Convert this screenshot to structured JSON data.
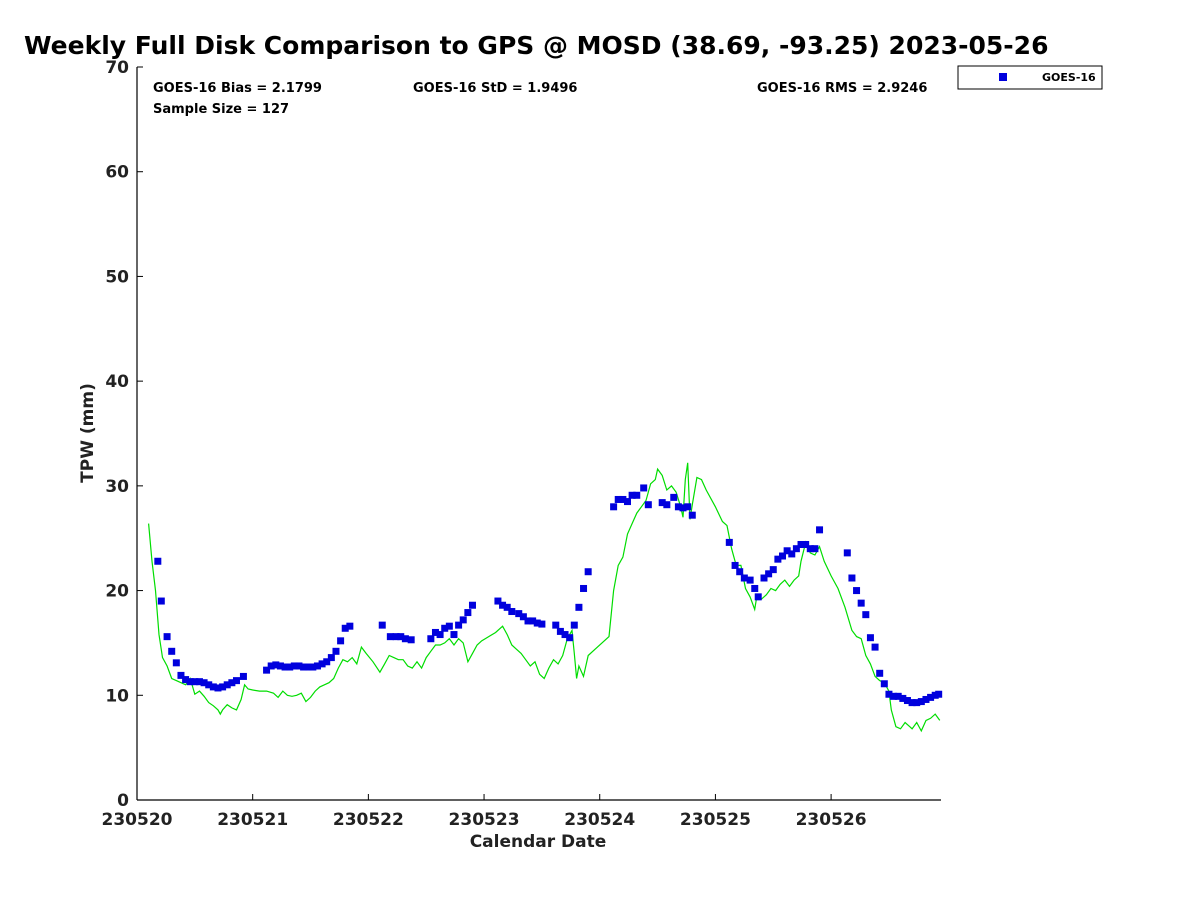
{
  "chart_data": {
    "type": "scatter",
    "title": "Weekly Full Disk Comparison to GPS @ MOSD (38.69, -93.25) 2023-05-26",
    "xlabel": "Calendar Date",
    "ylabel": "TPW (mm)",
    "xlim": [
      0,
      6.95
    ],
    "ylim": [
      0,
      70
    ],
    "x_tick_values": [
      0,
      1,
      2,
      3,
      4,
      5,
      6
    ],
    "x_tick_labels": [
      "230520",
      "230521",
      "230522",
      "230523",
      "230524",
      "230525",
      "230526"
    ],
    "y_ticks": [
      0,
      10,
      20,
      30,
      40,
      50,
      60,
      70
    ],
    "legend": {
      "position": "top-right, outside plot",
      "entries": [
        {
          "label": "GOES-16",
          "marker": "square",
          "color": "#0000dd"
        }
      ]
    },
    "stats": {
      "bias": "GOES-16 Bias = 2.1799",
      "std": "GOES-16 StD = 1.9496",
      "rms": "GOES-16 RMS = 2.9246",
      "sample": "Sample Size = 127"
    },
    "series": [
      {
        "name": "GOES-16",
        "kind": "points",
        "color": "#0000dd",
        "points": [
          [
            0.18,
            22.8
          ],
          [
            0.21,
            19.0
          ],
          [
            0.26,
            15.6
          ],
          [
            0.3,
            14.2
          ],
          [
            0.34,
            13.1
          ],
          [
            0.38,
            11.9
          ],
          [
            0.42,
            11.5
          ],
          [
            0.46,
            11.3
          ],
          [
            0.5,
            11.3
          ],
          [
            0.54,
            11.3
          ],
          [
            0.58,
            11.2
          ],
          [
            0.62,
            11.0
          ],
          [
            0.66,
            10.8
          ],
          [
            0.7,
            10.7
          ],
          [
            0.74,
            10.8
          ],
          [
            0.78,
            11.0
          ],
          [
            0.82,
            11.2
          ],
          [
            0.86,
            11.4
          ],
          [
            0.92,
            11.8
          ],
          [
            1.12,
            12.4
          ],
          [
            1.16,
            12.8
          ],
          [
            1.2,
            12.9
          ],
          [
            1.24,
            12.8
          ],
          [
            1.28,
            12.7
          ],
          [
            1.32,
            12.7
          ],
          [
            1.36,
            12.8
          ],
          [
            1.4,
            12.8
          ],
          [
            1.44,
            12.7
          ],
          [
            1.48,
            12.7
          ],
          [
            1.52,
            12.7
          ],
          [
            1.56,
            12.8
          ],
          [
            1.6,
            13.0
          ],
          [
            1.64,
            13.2
          ],
          [
            1.68,
            13.6
          ],
          [
            1.72,
            14.2
          ],
          [
            1.76,
            15.2
          ],
          [
            1.8,
            16.4
          ],
          [
            1.84,
            16.6
          ],
          [
            2.12,
            16.7
          ],
          [
            2.19,
            15.6
          ],
          [
            2.24,
            15.6
          ],
          [
            2.28,
            15.6
          ],
          [
            2.32,
            15.4
          ],
          [
            2.37,
            15.3
          ],
          [
            2.54,
            15.4
          ],
          [
            2.58,
            16.0
          ],
          [
            2.62,
            15.8
          ],
          [
            2.66,
            16.4
          ],
          [
            2.7,
            16.6
          ],
          [
            2.74,
            15.8
          ],
          [
            2.78,
            16.7
          ],
          [
            2.82,
            17.2
          ],
          [
            2.86,
            17.9
          ],
          [
            2.9,
            18.6
          ],
          [
            3.12,
            19.0
          ],
          [
            3.16,
            18.6
          ],
          [
            3.2,
            18.4
          ],
          [
            3.24,
            18.0
          ],
          [
            3.3,
            17.8
          ],
          [
            3.34,
            17.5
          ],
          [
            3.38,
            17.1
          ],
          [
            3.42,
            17.1
          ],
          [
            3.46,
            16.9
          ],
          [
            3.5,
            16.8
          ],
          [
            3.62,
            16.7
          ],
          [
            3.66,
            16.1
          ],
          [
            3.7,
            15.8
          ],
          [
            3.74,
            15.5
          ],
          [
            3.78,
            16.7
          ],
          [
            3.82,
            18.4
          ],
          [
            3.86,
            20.2
          ],
          [
            3.9,
            21.8
          ],
          [
            4.12,
            28.0
          ],
          [
            4.16,
            28.7
          ],
          [
            4.2,
            28.7
          ],
          [
            4.24,
            28.5
          ],
          [
            4.28,
            29.1
          ],
          [
            4.32,
            29.1
          ],
          [
            4.38,
            29.8
          ],
          [
            4.42,
            28.2
          ],
          [
            4.54,
            28.4
          ],
          [
            4.58,
            28.2
          ],
          [
            4.64,
            28.9
          ],
          [
            4.68,
            28.0
          ],
          [
            4.72,
            27.9
          ],
          [
            4.76,
            28.0
          ],
          [
            4.8,
            27.2
          ],
          [
            5.12,
            24.6
          ],
          [
            5.17,
            22.4
          ],
          [
            5.21,
            21.8
          ],
          [
            5.25,
            21.2
          ],
          [
            5.3,
            21.0
          ],
          [
            5.34,
            20.2
          ],
          [
            5.37,
            19.4
          ],
          [
            5.42,
            21.2
          ],
          [
            5.46,
            21.6
          ],
          [
            5.5,
            22.0
          ],
          [
            5.54,
            23.0
          ],
          [
            5.58,
            23.3
          ],
          [
            5.62,
            23.8
          ],
          [
            5.66,
            23.5
          ],
          [
            5.7,
            24.0
          ],
          [
            5.74,
            24.4
          ],
          [
            5.78,
            24.4
          ],
          [
            5.82,
            24.0
          ],
          [
            5.86,
            24.0
          ],
          [
            5.9,
            25.8
          ],
          [
            6.14,
            23.6
          ],
          [
            6.18,
            21.2
          ],
          [
            6.22,
            20.0
          ],
          [
            6.26,
            18.8
          ],
          [
            6.3,
            17.7
          ],
          [
            6.34,
            15.5
          ],
          [
            6.38,
            14.6
          ],
          [
            6.42,
            12.1
          ],
          [
            6.46,
            11.1
          ],
          [
            6.5,
            10.1
          ],
          [
            6.54,
            9.9
          ],
          [
            6.58,
            9.9
          ],
          [
            6.62,
            9.7
          ],
          [
            6.66,
            9.5
          ],
          [
            6.7,
            9.3
          ],
          [
            6.74,
            9.3
          ],
          [
            6.78,
            9.4
          ],
          [
            6.82,
            9.6
          ],
          [
            6.86,
            9.8
          ],
          [
            6.9,
            10.0
          ],
          [
            6.93,
            10.1
          ]
        ]
      },
      {
        "name": "GPS",
        "kind": "line",
        "color": "#00dd00",
        "points": [
          [
            0.1,
            26.4
          ],
          [
            0.13,
            22.8
          ],
          [
            0.16,
            20.0
          ],
          [
            0.19,
            15.8
          ],
          [
            0.22,
            13.6
          ],
          [
            0.26,
            12.8
          ],
          [
            0.3,
            11.6
          ],
          [
            0.34,
            11.4
          ],
          [
            0.38,
            11.2
          ],
          [
            0.42,
            11.0
          ],
          [
            0.46,
            11.6
          ],
          [
            0.5,
            10.1
          ],
          [
            0.54,
            10.4
          ],
          [
            0.58,
            9.9
          ],
          [
            0.62,
            9.3
          ],
          [
            0.66,
            9.0
          ],
          [
            0.7,
            8.6
          ],
          [
            0.72,
            8.2
          ],
          [
            0.74,
            8.6
          ],
          [
            0.78,
            9.1
          ],
          [
            0.82,
            8.8
          ],
          [
            0.86,
            8.6
          ],
          [
            0.9,
            9.6
          ],
          [
            0.93,
            11.0
          ],
          [
            0.96,
            10.6
          ],
          [
            1.0,
            10.5
          ],
          [
            1.06,
            10.4
          ],
          [
            1.12,
            10.4
          ],
          [
            1.18,
            10.2
          ],
          [
            1.22,
            9.8
          ],
          [
            1.26,
            10.4
          ],
          [
            1.3,
            10.0
          ],
          [
            1.34,
            9.9
          ],
          [
            1.38,
            10.0
          ],
          [
            1.42,
            10.2
          ],
          [
            1.46,
            9.4
          ],
          [
            1.5,
            9.8
          ],
          [
            1.54,
            10.4
          ],
          [
            1.58,
            10.8
          ],
          [
            1.62,
            11.0
          ],
          [
            1.66,
            11.2
          ],
          [
            1.7,
            11.6
          ],
          [
            1.74,
            12.6
          ],
          [
            1.78,
            13.4
          ],
          [
            1.82,
            13.2
          ],
          [
            1.86,
            13.6
          ],
          [
            1.9,
            13.0
          ],
          [
            1.94,
            14.6
          ],
          [
            1.98,
            14.0
          ],
          [
            2.04,
            13.2
          ],
          [
            2.1,
            12.2
          ],
          [
            2.14,
            13.0
          ],
          [
            2.18,
            13.8
          ],
          [
            2.22,
            13.6
          ],
          [
            2.26,
            13.4
          ],
          [
            2.3,
            13.4
          ],
          [
            2.34,
            12.8
          ],
          [
            2.38,
            12.6
          ],
          [
            2.42,
            13.2
          ],
          [
            2.46,
            12.6
          ],
          [
            2.5,
            13.6
          ],
          [
            2.54,
            14.2
          ],
          [
            2.58,
            14.8
          ],
          [
            2.62,
            14.8
          ],
          [
            2.66,
            15.0
          ],
          [
            2.7,
            15.4
          ],
          [
            2.74,
            14.8
          ],
          [
            2.78,
            15.4
          ],
          [
            2.82,
            15.0
          ],
          [
            2.86,
            13.2
          ],
          [
            2.9,
            14.0
          ],
          [
            2.94,
            14.8
          ],
          [
            2.98,
            15.2
          ],
          [
            3.04,
            15.6
          ],
          [
            3.1,
            16.0
          ],
          [
            3.16,
            16.6
          ],
          [
            3.2,
            15.8
          ],
          [
            3.24,
            14.8
          ],
          [
            3.28,
            14.4
          ],
          [
            3.32,
            14.0
          ],
          [
            3.36,
            13.4
          ],
          [
            3.4,
            12.8
          ],
          [
            3.44,
            13.2
          ],
          [
            3.48,
            12.0
          ],
          [
            3.52,
            11.6
          ],
          [
            3.56,
            12.6
          ],
          [
            3.6,
            13.4
          ],
          [
            3.64,
            13.0
          ],
          [
            3.68,
            13.8
          ],
          [
            3.72,
            15.4
          ],
          [
            3.76,
            16.2
          ],
          [
            3.78,
            14.0
          ],
          [
            3.8,
            11.6
          ],
          [
            3.82,
            12.8
          ],
          [
            3.86,
            11.8
          ],
          [
            3.9,
            13.8
          ],
          [
            3.96,
            14.4
          ],
          [
            4.02,
            15.0
          ],
          [
            4.08,
            15.6
          ],
          [
            4.12,
            20.0
          ],
          [
            4.16,
            22.4
          ],
          [
            4.2,
            23.2
          ],
          [
            4.24,
            25.4
          ],
          [
            4.28,
            26.4
          ],
          [
            4.32,
            27.4
          ],
          [
            4.36,
            28.0
          ],
          [
            4.4,
            28.6
          ],
          [
            4.44,
            30.2
          ],
          [
            4.48,
            30.6
          ],
          [
            4.5,
            31.6
          ],
          [
            4.54,
            31.0
          ],
          [
            4.58,
            29.6
          ],
          [
            4.62,
            30.0
          ],
          [
            4.66,
            29.4
          ],
          [
            4.7,
            28.0
          ],
          [
            4.72,
            27.0
          ],
          [
            4.74,
            30.6
          ],
          [
            4.76,
            32.2
          ],
          [
            4.78,
            26.8
          ],
          [
            4.8,
            28.2
          ],
          [
            4.84,
            30.8
          ],
          [
            4.88,
            30.6
          ],
          [
            4.92,
            29.6
          ],
          [
            5.0,
            28.0
          ],
          [
            5.06,
            26.6
          ],
          [
            5.1,
            26.2
          ],
          [
            5.14,
            24.0
          ],
          [
            5.18,
            22.4
          ],
          [
            5.22,
            22.4
          ],
          [
            5.26,
            20.2
          ],
          [
            5.3,
            19.4
          ],
          [
            5.34,
            18.2
          ],
          [
            5.36,
            19.6
          ],
          [
            5.4,
            19.2
          ],
          [
            5.44,
            19.6
          ],
          [
            5.48,
            20.2
          ],
          [
            5.52,
            20.0
          ],
          [
            5.56,
            20.6
          ],
          [
            5.6,
            21.0
          ],
          [
            5.64,
            20.4
          ],
          [
            5.68,
            21.0
          ],
          [
            5.72,
            21.4
          ],
          [
            5.74,
            22.8
          ],
          [
            5.78,
            24.6
          ],
          [
            5.82,
            23.6
          ],
          [
            5.86,
            23.4
          ],
          [
            5.9,
            24.2
          ],
          [
            5.94,
            22.8
          ],
          [
            6.0,
            21.4
          ],
          [
            6.06,
            20.2
          ],
          [
            6.12,
            18.4
          ],
          [
            6.18,
            16.2
          ],
          [
            6.22,
            15.6
          ],
          [
            6.26,
            15.4
          ],
          [
            6.3,
            13.8
          ],
          [
            6.34,
            13.0
          ],
          [
            6.38,
            11.8
          ],
          [
            6.42,
            11.4
          ],
          [
            6.46,
            11.2
          ],
          [
            6.5,
            10.4
          ],
          [
            6.52,
            8.6
          ],
          [
            6.56,
            7.0
          ],
          [
            6.6,
            6.8
          ],
          [
            6.64,
            7.4
          ],
          [
            6.68,
            7.0
          ],
          [
            6.7,
            6.8
          ],
          [
            6.74,
            7.4
          ],
          [
            6.78,
            6.6
          ],
          [
            6.82,
            7.6
          ],
          [
            6.86,
            7.8
          ],
          [
            6.9,
            8.2
          ],
          [
            6.94,
            7.6
          ]
        ]
      }
    ]
  }
}
